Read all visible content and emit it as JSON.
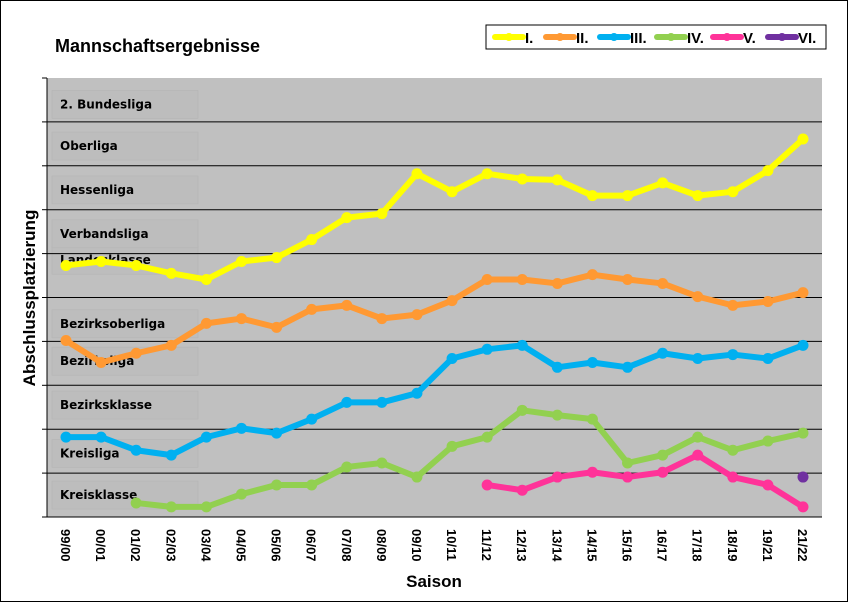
{
  "chart_data": {
    "type": "line",
    "title": "Mannschaftsergebnisse",
    "xlabel": "Saison",
    "ylabel": "Abschlussplatzierung",
    "ylim": [
      0,
      10
    ],
    "grid": true,
    "legend_position": "top-right",
    "categories": [
      "99/00",
      "00/01",
      "01/02",
      "02/03",
      "03/04",
      "04/05",
      "05/06",
      "06/07",
      "07/08",
      "08/09",
      "09/10",
      "10/11",
      "11/12",
      "12/13",
      "13/14",
      "14/15",
      "15/16",
      "16/17",
      "17/18",
      "18/19",
      "19/21",
      "21/22"
    ],
    "bands": [
      "Kreisklasse",
      "Kreisliga",
      "Bezirksklasse",
      "Bezirksliga",
      "Bezirksoberliga",
      "Landesklasse",
      "Verbandsliga",
      "Hessenliga",
      "Oberliga",
      "2. Bundesliga"
    ],
    "series": [
      {
        "name": "I.",
        "color": "#FFFF00",
        "values": [
          5.73,
          5.82,
          5.73,
          5.55,
          5.41,
          5.82,
          5.91,
          6.32,
          6.82,
          6.91,
          7.82,
          7.41,
          7.82,
          7.7,
          7.68,
          7.32,
          7.32,
          7.61,
          7.32,
          7.41,
          7.89,
          8.61
        ]
      },
      {
        "name": "II.",
        "color": "#FF9933",
        "values": [
          4.02,
          3.52,
          3.73,
          3.91,
          4.41,
          4.52,
          4.32,
          4.73,
          4.82,
          4.52,
          4.61,
          4.93,
          5.41,
          5.41,
          5.32,
          5.52,
          5.41,
          5.32,
          5.02,
          4.82,
          4.91,
          5.11
        ]
      },
      {
        "name": "III.",
        "color": "#00B0F0",
        "values": [
          1.82,
          1.82,
          1.52,
          1.41,
          1.82,
          2.02,
          1.91,
          2.23,
          2.61,
          2.61,
          2.82,
          3.61,
          3.82,
          3.91,
          3.41,
          3.52,
          3.41,
          3.73,
          3.61,
          3.7,
          3.61,
          3.91
        ]
      },
      {
        "name": "IV.",
        "color": "#92D050",
        "values": [
          null,
          null,
          0.32,
          0.23,
          0.23,
          0.52,
          0.73,
          0.73,
          1.14,
          1.23,
          0.91,
          1.61,
          1.82,
          2.43,
          2.32,
          2.23,
          1.23,
          1.41,
          1.82,
          1.52,
          1.73,
          1.91
        ]
      },
      {
        "name": "V.",
        "color": "#FF3399",
        "values": [
          null,
          null,
          null,
          null,
          null,
          null,
          null,
          null,
          null,
          null,
          null,
          null,
          0.73,
          0.61,
          0.91,
          1.02,
          0.91,
          1.02,
          1.41,
          0.91,
          0.73,
          0.23
        ]
      },
      {
        "name": "VI.",
        "color": "#7030A0",
        "values": [
          null,
          null,
          null,
          null,
          null,
          null,
          null,
          null,
          null,
          null,
          null,
          null,
          null,
          null,
          null,
          null,
          null,
          null,
          null,
          null,
          null,
          0.91
        ]
      }
    ]
  }
}
